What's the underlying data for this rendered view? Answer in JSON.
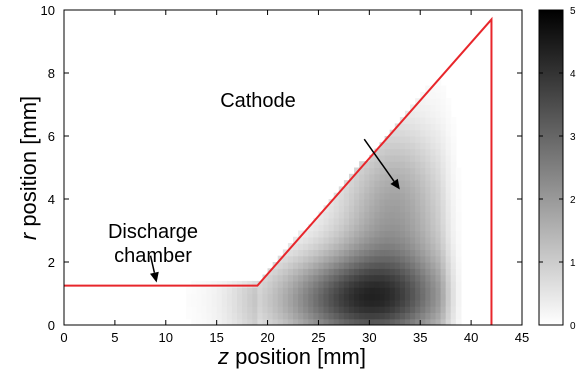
{
  "chart_data": {
    "type": "heatmap",
    "title": "",
    "xlabel_var": "z",
    "xlabel_rest": " position [mm]",
    "ylabel_var": "r",
    "ylabel_rest": " position [mm]",
    "xlim": [
      0,
      45
    ],
    "ylim": [
      0,
      10
    ],
    "xticks": [
      0,
      5,
      10,
      15,
      20,
      25,
      30,
      35,
      40,
      45
    ],
    "yticks": [
      0,
      2,
      4,
      6,
      8,
      10
    ],
    "colorbar": {
      "range": [
        0,
        5
      ],
      "ticks": [
        0,
        1,
        2,
        3,
        4,
        5
      ],
      "colormap": "white-to-black"
    },
    "boundary": {
      "color": "#e8262b",
      "points": [
        [
          0,
          1.25
        ],
        [
          19,
          1.25
        ],
        [
          42,
          9.7
        ],
        [
          42,
          0
        ]
      ]
    },
    "intensity_regions": [
      {
        "z_center": 29,
        "r_center": 0.8,
        "z_spread": 6,
        "r_spread": 1.0,
        "peak": 3.3
      },
      {
        "z_center": 32,
        "r_center": 2.5,
        "z_spread": 4,
        "r_spread": 2.2,
        "peak": 1.6
      },
      {
        "z_center": 33,
        "r_center": 4.5,
        "z_spread": 3,
        "r_spread": 1.5,
        "peak": 0.6
      }
    ],
    "annotations": [
      {
        "text": "Cathode",
        "at": [
          26.5,
          7.0
        ],
        "arrow_from": [
          29.5,
          5.9
        ],
        "arrow_to": [
          33.0,
          4.3
        ]
      },
      {
        "text_lines": [
          "Discharge",
          "chamber"
        ],
        "at": [
          8.5,
          3.8
        ],
        "arrow_from": [
          8.5,
          2.2
        ],
        "arrow_to": [
          9.1,
          1.35
        ]
      }
    ]
  }
}
